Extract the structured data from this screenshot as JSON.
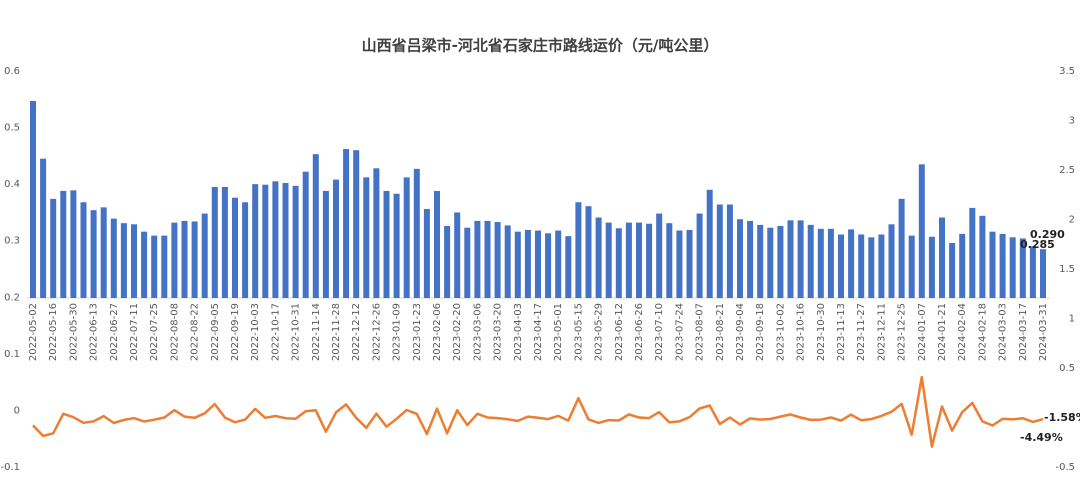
{
  "chart_data": {
    "type": "bar",
    "title": "山西省吕梁市-河北省石家庄市路线运价（元/吨公里）",
    "categories": [
      "2022-05-02",
      null,
      "2022-05-16",
      null,
      "2022-05-30",
      null,
      "2022-06-13",
      null,
      "2022-06-27",
      null,
      "2022-07-11",
      null,
      "2022-07-25",
      null,
      "2022-08-08",
      null,
      "2022-08-22",
      null,
      "2022-09-05",
      null,
      "2022-09-19",
      null,
      "2022-10-03",
      null,
      "2022-10-17",
      null,
      "2022-10-31",
      null,
      "2022-11-14",
      null,
      "2022-11-28",
      null,
      "2022-12-12",
      null,
      "2022-12-26",
      null,
      "2023-01-09",
      null,
      "2023-01-23",
      null,
      "2023-02-06",
      null,
      "2023-02-20",
      null,
      "2023-03-06",
      null,
      "2023-03-20",
      null,
      "2023-04-03",
      null,
      "2023-04-17",
      null,
      "2023-05-01",
      null,
      "2023-05-15",
      null,
      "2023-05-29",
      null,
      "2023-06-12",
      null,
      "2023-06-26",
      null,
      "2023-07-10",
      null,
      "2023-07-24",
      null,
      "2023-08-07",
      null,
      "2023-08-21",
      null,
      "2023-09-04",
      null,
      "2023-09-18",
      null,
      "2023-10-02",
      null,
      "2023-10-16",
      null,
      "2023-10-30",
      null,
      "2023-11-13",
      null,
      "2023-11-27",
      null,
      "2023-12-11",
      null,
      "2023-12-25",
      null,
      "2024-01-07",
      null,
      "2024-01-21",
      null,
      "2024-02-04",
      null,
      "2024-02-18",
      null,
      "2024-03-03",
      null,
      "2024-03-17",
      null,
      "2024-03-31"
    ],
    "series": [
      {
        "type": "bar",
        "color": "#4472c4",
        "values": [
          0.547,
          0.445,
          0.374,
          0.388,
          0.389,
          0.368,
          0.354,
          0.359,
          0.339,
          0.331,
          0.329,
          0.316,
          0.309,
          0.309,
          0.332,
          0.335,
          0.334,
          0.348,
          0.395,
          0.395,
          0.376,
          0.368,
          0.4,
          0.399,
          0.405,
          0.402,
          0.397,
          0.422,
          0.453,
          0.388,
          0.408,
          0.462,
          0.46,
          0.412,
          0.428,
          0.388,
          0.383,
          0.412,
          0.427,
          0.356,
          0.388,
          0.326,
          0.35,
          0.323,
          0.335,
          0.335,
          0.333,
          0.327,
          0.316,
          0.319,
          0.318,
          0.313,
          0.318,
          0.308,
          0.368,
          0.361,
          0.341,
          0.332,
          0.322,
          0.332,
          0.332,
          0.33,
          0.348,
          0.331,
          0.318,
          0.319,
          0.348,
          0.39,
          0.364,
          0.364,
          0.338,
          0.335,
          0.328,
          0.323,
          0.326,
          0.336,
          0.336,
          0.328,
          0.321,
          0.321,
          0.311,
          0.32,
          0.311,
          0.306,
          0.311,
          0.329,
          0.374,
          0.309,
          0.435,
          0.307,
          0.341,
          0.296,
          0.312,
          0.358,
          0.344,
          0.316,
          0.312,
          0.306,
          0.304,
          0.29,
          0.285
        ],
        "value_labels": {
          "99": "0.290",
          "100": "0.285"
        }
      },
      {
        "type": "line",
        "color": "#ed7d31",
        "axis": "y2",
        "values": [
          -0.08,
          -0.186,
          -0.16,
          0.037,
          0.003,
          -0.054,
          -0.038,
          0.014,
          -0.056,
          -0.024,
          -0.006,
          -0.04,
          -0.022,
          0,
          0.074,
          0.009,
          -0.003,
          0.042,
          0.135,
          0,
          -0.048,
          -0.021,
          0.087,
          -0.003,
          0.015,
          -0.007,
          -0.012,
          0.063,
          0.073,
          -0.143,
          0.052,
          0.132,
          -0.004,
          -0.104,
          0.039,
          -0.093,
          -0.013,
          0.076,
          0.036,
          -0.166,
          0.09,
          -0.16,
          0.074,
          -0.077,
          0.037,
          0,
          -0.006,
          -0.018,
          -0.034,
          0.009,
          -0.003,
          -0.016,
          0.016,
          -0.031,
          0.195,
          -0.019,
          -0.055,
          -0.026,
          -0.03,
          0.031,
          0,
          -0.006,
          0.055,
          -0.049,
          -0.039,
          0.003,
          0.091,
          0.121,
          -0.067,
          0,
          -0.071,
          -0.009,
          -0.021,
          -0.015,
          0.009,
          0.031,
          0,
          -0.024,
          -0.021,
          0,
          -0.031,
          0.029,
          -0.028,
          -0.016,
          0.016,
          0.058,
          0.137,
          -0.174,
          0.408,
          -0.294,
          0.111,
          -0.132,
          0.054,
          0.147,
          -0.039,
          -0.081,
          -0.013,
          -0.019,
          -0.007,
          -0.0449,
          -0.0158
        ],
        "value_labels": {
          "99": "-4.49%",
          "100": "-1.58%"
        }
      }
    ],
    "ylim": [
      -0.1,
      0.6
    ],
    "yticks": [
      -0.1,
      0,
      0.1,
      0.2,
      0.3,
      0.4,
      0.5,
      0.6
    ],
    "y2lim": [
      -0.5,
      3.5
    ],
    "y2ticks": [
      -0.5,
      0,
      0.5,
      1,
      1.5,
      2,
      2.5,
      3,
      3.5
    ]
  }
}
